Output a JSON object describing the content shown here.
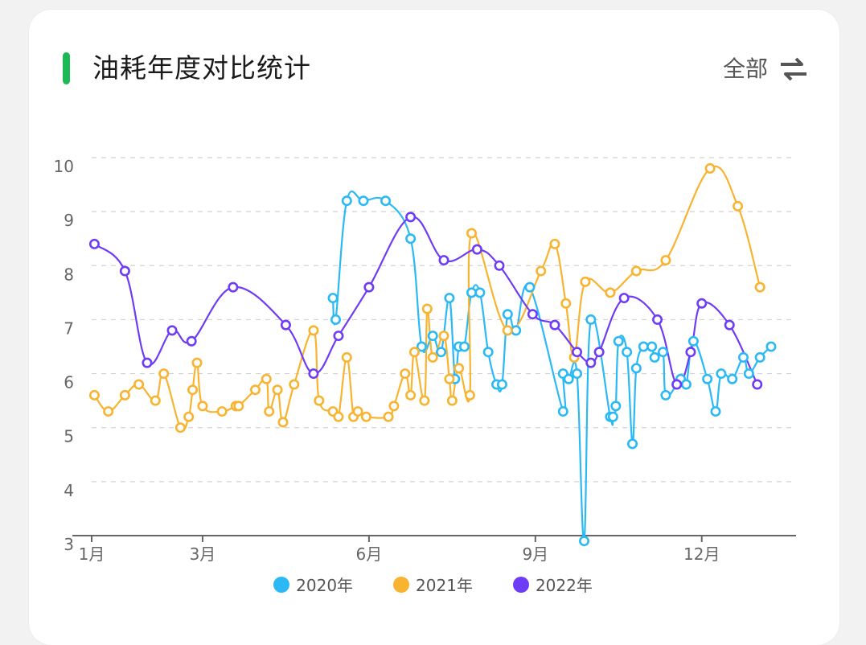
{
  "header": {
    "title": "油耗年度对比统计",
    "filter_label": "全部",
    "accent_color": "#1db954"
  },
  "chart_data": {
    "type": "line",
    "ylim": [
      3,
      10
    ],
    "xlim": [
      1,
      13.7
    ],
    "y_ticks": [
      3,
      4,
      5,
      6,
      7,
      8,
      9,
      10
    ],
    "x_ticks": [
      {
        "value": 1,
        "label": "1月"
      },
      {
        "value": 3,
        "label": "3月"
      },
      {
        "value": 6,
        "label": "6月"
      },
      {
        "value": 9,
        "label": "9月"
      },
      {
        "value": 12,
        "label": "12月"
      }
    ],
    "grid": "horizontal dashed",
    "legend_position": "bottom",
    "series": [
      {
        "name": "2020年",
        "color": "#2bb9f5",
        "points": [
          [
            5.35,
            7.4
          ],
          [
            5.4,
            7.0
          ],
          [
            5.6,
            9.2
          ],
          [
            5.9,
            9.2
          ],
          [
            6.3,
            9.2
          ],
          [
            6.75,
            8.5
          ],
          [
            6.95,
            6.5
          ],
          [
            7.15,
            6.7
          ],
          [
            7.3,
            6.4
          ],
          [
            7.45,
            7.4
          ],
          [
            7.55,
            5.9
          ],
          [
            7.62,
            6.5
          ],
          [
            7.72,
            6.5
          ],
          [
            7.85,
            7.5
          ],
          [
            8.0,
            7.5
          ],
          [
            8.15,
            6.4
          ],
          [
            8.3,
            5.8
          ],
          [
            8.4,
            5.8
          ],
          [
            8.5,
            7.1
          ],
          [
            8.65,
            6.8
          ],
          [
            8.9,
            7.6
          ],
          [
            9.5,
            5.3
          ],
          [
            9.5,
            6.0
          ],
          [
            9.6,
            5.9
          ],
          [
            9.75,
            6.0
          ],
          [
            9.88,
            2.9
          ],
          [
            10.0,
            7.0
          ],
          [
            10.35,
            5.2
          ],
          [
            10.4,
            5.2
          ],
          [
            10.45,
            5.4
          ],
          [
            10.5,
            6.6
          ],
          [
            10.65,
            6.4
          ],
          [
            10.75,
            4.7
          ],
          [
            10.82,
            6.1
          ],
          [
            10.95,
            6.5
          ],
          [
            11.1,
            6.5
          ],
          [
            11.15,
            6.3
          ],
          [
            11.3,
            6.4
          ],
          [
            11.35,
            5.6
          ],
          [
            11.55,
            5.8
          ],
          [
            11.62,
            5.9
          ],
          [
            11.72,
            5.8
          ],
          [
            11.85,
            6.6
          ],
          [
            12.1,
            5.9
          ],
          [
            12.25,
            5.3
          ],
          [
            12.35,
            6.0
          ],
          [
            12.55,
            5.9
          ],
          [
            12.75,
            6.3
          ],
          [
            12.85,
            6.0
          ],
          [
            13.05,
            6.3
          ],
          [
            13.25,
            6.5
          ]
        ]
      },
      {
        "name": "2021年",
        "color": "#f8b330",
        "points": [
          [
            1.05,
            5.6
          ],
          [
            1.3,
            5.3
          ],
          [
            1.6,
            5.6
          ],
          [
            1.85,
            5.8
          ],
          [
            2.15,
            5.5
          ],
          [
            2.3,
            6.0
          ],
          [
            2.6,
            5.0
          ],
          [
            2.75,
            5.2
          ],
          [
            2.82,
            5.7
          ],
          [
            2.9,
            6.2
          ],
          [
            3.0,
            5.4
          ],
          [
            3.35,
            5.3
          ],
          [
            3.6,
            5.4
          ],
          [
            3.65,
            5.4
          ],
          [
            3.95,
            5.7
          ],
          [
            4.15,
            5.9
          ],
          [
            4.2,
            5.3
          ],
          [
            4.35,
            5.7
          ],
          [
            4.45,
            5.1
          ],
          [
            4.65,
            5.8
          ],
          [
            5.0,
            6.8
          ],
          [
            5.1,
            5.5
          ],
          [
            5.35,
            5.3
          ],
          [
            5.45,
            5.2
          ],
          [
            5.6,
            6.3
          ],
          [
            5.72,
            5.2
          ],
          [
            5.8,
            5.3
          ],
          [
            5.95,
            5.2
          ],
          [
            6.35,
            5.2
          ],
          [
            6.45,
            5.4
          ],
          [
            6.65,
            6.0
          ],
          [
            6.75,
            5.6
          ],
          [
            6.82,
            6.4
          ],
          [
            7.0,
            5.5
          ],
          [
            7.05,
            7.2
          ],
          [
            7.15,
            6.3
          ],
          [
            7.35,
            6.7
          ],
          [
            7.45,
            5.9
          ],
          [
            7.5,
            5.5
          ],
          [
            7.62,
            6.1
          ],
          [
            7.82,
            5.6
          ],
          [
            7.85,
            8.6
          ],
          [
            8.5,
            6.8
          ],
          [
            9.1,
            7.9
          ],
          [
            9.35,
            8.4
          ],
          [
            9.55,
            7.3
          ],
          [
            9.7,
            6.3
          ],
          [
            9.9,
            7.7
          ],
          [
            10.35,
            7.5
          ],
          [
            10.82,
            7.9
          ],
          [
            11.35,
            8.1
          ],
          [
            12.15,
            9.8
          ],
          [
            12.65,
            9.1
          ],
          [
            13.05,
            7.6
          ]
        ]
      },
      {
        "name": "2022年",
        "color": "#6e3cf5",
        "points": [
          [
            1.05,
            8.4
          ],
          [
            1.6,
            7.9
          ],
          [
            2.0,
            6.2
          ],
          [
            2.45,
            6.8
          ],
          [
            2.8,
            6.6
          ],
          [
            3.55,
            7.6
          ],
          [
            4.5,
            6.9
          ],
          [
            5.0,
            6.0
          ],
          [
            5.45,
            6.7
          ],
          [
            6.0,
            7.6
          ],
          [
            6.75,
            8.9
          ],
          [
            7.35,
            8.1
          ],
          [
            7.95,
            8.3
          ],
          [
            8.35,
            8.0
          ],
          [
            8.95,
            7.1
          ],
          [
            9.35,
            6.9
          ],
          [
            9.75,
            6.4
          ],
          [
            10.0,
            6.2
          ],
          [
            10.15,
            6.4
          ],
          [
            10.6,
            7.4
          ],
          [
            11.2,
            7.0
          ],
          [
            11.55,
            5.8
          ],
          [
            11.8,
            6.4
          ],
          [
            12.0,
            7.3
          ],
          [
            12.5,
            6.9
          ],
          [
            13.0,
            5.8
          ]
        ]
      }
    ]
  }
}
